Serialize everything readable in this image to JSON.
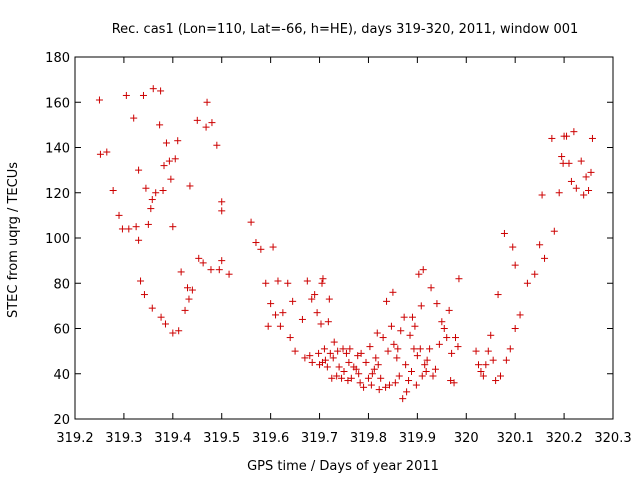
{
  "chart_data": {
    "type": "scatter",
    "title": "Rec. cas1 (Lon=110, Lat=-66, h=HE), days 319-320, 2011, window 001",
    "xlabel": "GPS time / Days of year 2011",
    "ylabel": "STEC from uqrg / TECUs",
    "xlim": [
      319.2,
      320.3
    ],
    "ylim": [
      20,
      180
    ],
    "xticks": [
      "319.2",
      "319.3",
      "319.4",
      "319.5",
      "319.6",
      "319.7",
      "319.8",
      "319.9",
      "320",
      "320.1",
      "320.2",
      "320.3"
    ],
    "yticks": [
      "20",
      "40",
      "60",
      "80",
      "100",
      "120",
      "140",
      "160",
      "180"
    ],
    "grid": false,
    "legend": "none",
    "marker": "plus",
    "marker_color": "#cc0000",
    "points": [
      [
        319.25,
        161
      ],
      [
        319.252,
        137
      ],
      [
        319.265,
        138
      ],
      [
        319.278,
        121
      ],
      [
        319.29,
        110
      ],
      [
        319.297,
        104
      ],
      [
        319.305,
        163
      ],
      [
        319.31,
        104
      ],
      [
        319.32,
        153
      ],
      [
        319.325,
        105
      ],
      [
        319.33,
        99
      ],
      [
        319.33,
        130
      ],
      [
        319.334,
        81
      ],
      [
        319.34,
        163
      ],
      [
        319.342,
        75
      ],
      [
        319.345,
        122
      ],
      [
        319.35,
        106
      ],
      [
        319.355,
        113
      ],
      [
        319.358,
        117
      ],
      [
        319.358,
        69
      ],
      [
        319.36,
        166
      ],
      [
        319.365,
        120
      ],
      [
        319.373,
        150
      ],
      [
        319.375,
        165
      ],
      [
        319.376,
        65
      ],
      [
        319.38,
        121
      ],
      [
        319.382,
        132
      ],
      [
        319.385,
        62
      ],
      [
        319.387,
        142
      ],
      [
        319.393,
        134
      ],
      [
        319.396,
        126
      ],
      [
        319.4,
        105
      ],
      [
        319.4,
        58
      ],
      [
        319.405,
        135
      ],
      [
        319.41,
        143
      ],
      [
        319.412,
        59
      ],
      [
        319.417,
        85
      ],
      [
        319.425,
        68
      ],
      [
        319.43,
        78
      ],
      [
        319.433,
        73
      ],
      [
        319.435,
        123
      ],
      [
        319.44,
        77
      ],
      [
        319.45,
        152
      ],
      [
        319.453,
        91
      ],
      [
        319.462,
        89
      ],
      [
        319.468,
        149
      ],
      [
        319.47,
        160
      ],
      [
        319.478,
        86
      ],
      [
        319.48,
        151
      ],
      [
        319.49,
        141
      ],
      [
        319.495,
        86
      ],
      [
        319.5,
        116
      ],
      [
        319.5,
        112
      ],
      [
        319.5,
        90
      ],
      [
        319.515,
        84
      ],
      [
        319.56,
        107
      ],
      [
        319.57,
        98
      ],
      [
        319.58,
        95
      ],
      [
        319.59,
        80
      ],
      [
        319.595,
        61
      ],
      [
        319.6,
        71
      ],
      [
        319.605,
        96
      ],
      [
        319.61,
        66
      ],
      [
        319.615,
        81
      ],
      [
        319.62,
        61
      ],
      [
        319.625,
        67
      ],
      [
        319.635,
        80
      ],
      [
        319.64,
        56
      ],
      [
        319.645,
        72
      ],
      [
        319.65,
        50
      ],
      [
        319.665,
        64
      ],
      [
        319.67,
        47
      ],
      [
        319.675,
        81
      ],
      [
        319.68,
        48
      ],
      [
        319.684,
        73
      ],
      [
        319.685,
        45
      ],
      [
        319.69,
        75
      ],
      [
        319.695,
        67
      ],
      [
        319.698,
        49
      ],
      [
        319.7,
        44
      ],
      [
        319.703,
        62
      ],
      [
        319.705,
        80
      ],
      [
        319.706,
        45
      ],
      [
        319.707,
        82
      ],
      [
        319.71,
        51
      ],
      [
        319.712,
        46
      ],
      [
        319.716,
        43
      ],
      [
        319.718,
        63
      ],
      [
        319.72,
        73
      ],
      [
        319.722,
        49
      ],
      [
        319.725,
        38
      ],
      [
        319.728,
        47
      ],
      [
        319.73,
        54
      ],
      [
        319.735,
        39
      ],
      [
        319.737,
        50
      ],
      [
        319.74,
        43
      ],
      [
        319.745,
        38
      ],
      [
        319.748,
        51
      ],
      [
        319.75,
        41
      ],
      [
        319.755,
        49
      ],
      [
        319.758,
        37
      ],
      [
        319.76,
        45
      ],
      [
        319.762,
        51
      ],
      [
        319.765,
        38
      ],
      [
        319.77,
        43
      ],
      [
        319.775,
        42
      ],
      [
        319.778,
        48
      ],
      [
        319.78,
        40
      ],
      [
        319.783,
        36
      ],
      [
        319.785,
        49
      ],
      [
        319.79,
        34
      ],
      [
        319.795,
        45
      ],
      [
        319.8,
        38
      ],
      [
        319.803,
        52
      ],
      [
        319.806,
        35
      ],
      [
        319.808,
        40
      ],
      [
        319.812,
        42
      ],
      [
        319.815,
        47
      ],
      [
        319.818,
        58
      ],
      [
        319.82,
        44
      ],
      [
        319.822,
        33
      ],
      [
        319.825,
        38
      ],
      [
        319.83,
        56
      ],
      [
        319.835,
        34
      ],
      [
        319.837,
        72
      ],
      [
        319.84,
        50
      ],
      [
        319.843,
        35
      ],
      [
        319.847,
        61
      ],
      [
        319.85,
        76
      ],
      [
        319.852,
        53
      ],
      [
        319.855,
        36
      ],
      [
        319.858,
        47
      ],
      [
        319.86,
        51
      ],
      [
        319.863,
        39
      ],
      [
        319.866,
        59
      ],
      [
        319.87,
        29
      ],
      [
        319.873,
        65
      ],
      [
        319.876,
        44
      ],
      [
        319.878,
        32
      ],
      [
        319.882,
        37
      ],
      [
        319.885,
        57
      ],
      [
        319.888,
        41
      ],
      [
        319.89,
        65
      ],
      [
        319.893,
        51
      ],
      [
        319.895,
        61
      ],
      [
        319.898,
        35
      ],
      [
        319.9,
        48
      ],
      [
        319.903,
        84
      ],
      [
        319.906,
        51
      ],
      [
        319.908,
        70
      ],
      [
        319.91,
        39
      ],
      [
        319.912,
        86
      ],
      [
        319.915,
        44
      ],
      [
        319.918,
        41
      ],
      [
        319.92,
        46
      ],
      [
        319.925,
        51
      ],
      [
        319.928,
        78
      ],
      [
        319.932,
        39
      ],
      [
        319.937,
        42
      ],
      [
        319.94,
        71
      ],
      [
        319.945,
        53
      ],
      [
        319.95,
        63
      ],
      [
        319.955,
        60
      ],
      [
        319.96,
        56
      ],
      [
        319.965,
        68
      ],
      [
        319.968,
        37
      ],
      [
        319.97,
        49
      ],
      [
        319.975,
        36
      ],
      [
        319.978,
        56
      ],
      [
        319.983,
        52
      ],
      [
        319.985,
        82
      ],
      [
        320.02,
        50
      ],
      [
        320.025,
        44
      ],
      [
        320.03,
        41
      ],
      [
        320.035,
        39
      ],
      [
        320.04,
        44
      ],
      [
        320.045,
        50
      ],
      [
        320.05,
        57
      ],
      [
        320.055,
        46
      ],
      [
        320.06,
        37
      ],
      [
        320.065,
        75
      ],
      [
        320.07,
        39
      ],
      [
        320.078,
        102
      ],
      [
        320.082,
        46
      ],
      [
        320.09,
        51
      ],
      [
        320.095,
        96
      ],
      [
        320.1,
        88
      ],
      [
        320.1,
        60
      ],
      [
        320.11,
        66
      ],
      [
        320.125,
        80
      ],
      [
        320.14,
        84
      ],
      [
        320.15,
        97
      ],
      [
        320.155,
        119
      ],
      [
        320.16,
        91
      ],
      [
        320.175,
        144
      ],
      [
        320.18,
        103
      ],
      [
        320.19,
        120
      ],
      [
        320.195,
        136
      ],
      [
        320.198,
        133
      ],
      [
        320.2,
        145
      ],
      [
        320.205,
        145
      ],
      [
        320.21,
        133
      ],
      [
        320.215,
        125
      ],
      [
        320.22,
        147
      ],
      [
        320.225,
        122
      ],
      [
        320.235,
        134
      ],
      [
        320.24,
        119
      ],
      [
        320.245,
        127
      ],
      [
        320.25,
        121
      ],
      [
        320.255,
        129
      ],
      [
        320.258,
        144
      ]
    ]
  }
}
